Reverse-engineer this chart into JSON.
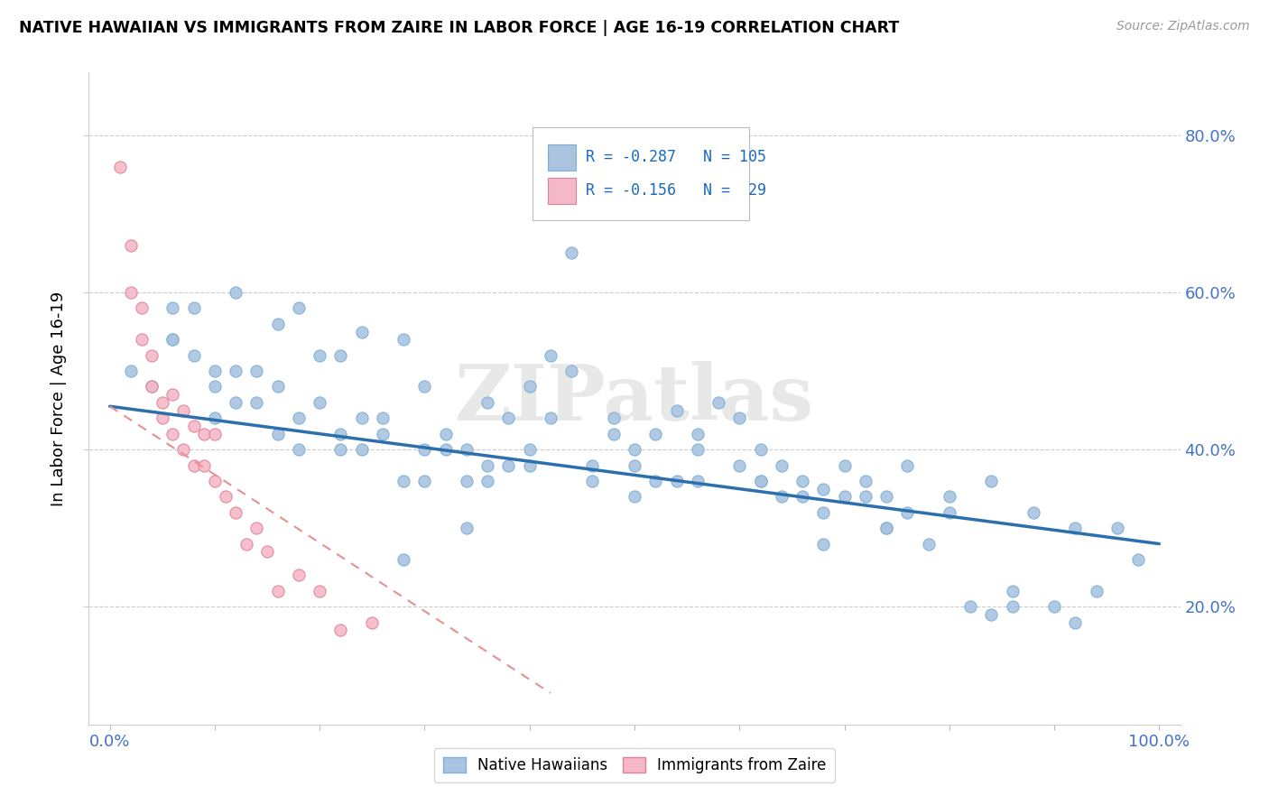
{
  "title": "NATIVE HAWAIIAN VS IMMIGRANTS FROM ZAIRE IN LABOR FORCE | AGE 16-19 CORRELATION CHART",
  "source": "Source: ZipAtlas.com",
  "ylabel": "In Labor Force | Age 16-19",
  "xlim": [
    -0.02,
    1.02
  ],
  "ylim": [
    0.05,
    0.88
  ],
  "ytick_right_positions": [
    0.2,
    0.4,
    0.6,
    0.8
  ],
  "ytick_right_labels": [
    "20.0%",
    "40.0%",
    "60.0%",
    "80.0%"
  ],
  "xtick_positions": [
    0.0,
    0.1,
    0.2,
    0.3,
    0.4,
    0.5,
    0.6,
    0.7,
    0.8,
    0.9,
    1.0
  ],
  "xtick_labels": [
    "0.0%",
    "",
    "",
    "",
    "",
    "",
    "",
    "",
    "",
    "",
    "100.0%"
  ],
  "r_blue": -0.287,
  "n_blue": 105,
  "r_pink": -0.156,
  "n_pink": 29,
  "blue_dot_color": "#aac4e0",
  "blue_dot_edge": "#7bafd4",
  "pink_dot_color": "#f5b8c8",
  "pink_dot_edge": "#e08098",
  "blue_line_color": "#2c6fad",
  "pink_line_color": "#e89090",
  "watermark": "ZIPatlas",
  "legend_r_color": "#1a6bbf",
  "blue_trend_x0": 0.0,
  "blue_trend_y0": 0.455,
  "blue_trend_x1": 1.0,
  "blue_trend_y1": 0.28,
  "pink_trend_x0": 0.0,
  "pink_trend_y0": 0.455,
  "pink_trend_x1": 0.42,
  "pink_trend_y1": 0.09,
  "blue_x": [
    0.42,
    0.44,
    0.08,
    0.24,
    0.14,
    0.12,
    0.3,
    0.18,
    0.2,
    0.28,
    0.16,
    0.1,
    0.22,
    0.26,
    0.36,
    0.32,
    0.38,
    0.34,
    0.4,
    0.06,
    0.46,
    0.5,
    0.48,
    0.52,
    0.54,
    0.56,
    0.6,
    0.58,
    0.62,
    0.64,
    0.66,
    0.68,
    0.7,
    0.72,
    0.74,
    0.76,
    0.8,
    0.84,
    0.88,
    0.92,
    0.96,
    0.04,
    0.02,
    0.36,
    0.32,
    0.28,
    0.24,
    0.22,
    0.18,
    0.14,
    0.1,
    0.08,
    0.46,
    0.5,
    0.54,
    0.6,
    0.64,
    0.68,
    0.72,
    0.76,
    0.84,
    0.4,
    0.38,
    0.34,
    0.3,
    0.26,
    0.2,
    0.16,
    0.12,
    0.06,
    0.44,
    0.48,
    0.52,
    0.56,
    0.62,
    0.66,
    0.7,
    0.74,
    0.78,
    0.82,
    0.86,
    0.9,
    0.94,
    0.98,
    0.42,
    0.36,
    0.3,
    0.24,
    0.18,
    0.12,
    0.06,
    0.5,
    0.56,
    0.62,
    0.68,
    0.74,
    0.8,
    0.86,
    0.92,
    0.4,
    0.34,
    0.28,
    0.22,
    0.16,
    0.1
  ],
  "blue_y": [
    0.52,
    0.65,
    0.58,
    0.55,
    0.5,
    0.6,
    0.48,
    0.58,
    0.52,
    0.54,
    0.56,
    0.5,
    0.52,
    0.44,
    0.46,
    0.42,
    0.44,
    0.4,
    0.48,
    0.54,
    0.38,
    0.4,
    0.44,
    0.42,
    0.45,
    0.42,
    0.44,
    0.46,
    0.4,
    0.38,
    0.36,
    0.35,
    0.38,
    0.36,
    0.34,
    0.38,
    0.34,
    0.36,
    0.32,
    0.3,
    0.3,
    0.48,
    0.5,
    0.38,
    0.4,
    0.36,
    0.44,
    0.42,
    0.44,
    0.46,
    0.48,
    0.52,
    0.36,
    0.34,
    0.36,
    0.38,
    0.34,
    0.32,
    0.34,
    0.32,
    0.19,
    0.4,
    0.38,
    0.36,
    0.4,
    0.42,
    0.46,
    0.48,
    0.5,
    0.54,
    0.5,
    0.42,
    0.36,
    0.4,
    0.36,
    0.34,
    0.34,
    0.3,
    0.28,
    0.2,
    0.22,
    0.2,
    0.22,
    0.26,
    0.44,
    0.36,
    0.36,
    0.4,
    0.4,
    0.46,
    0.58,
    0.38,
    0.36,
    0.36,
    0.28,
    0.3,
    0.32,
    0.2,
    0.18,
    0.38,
    0.3,
    0.26,
    0.4,
    0.42,
    0.44
  ],
  "pink_x": [
    0.01,
    0.02,
    0.02,
    0.03,
    0.03,
    0.04,
    0.04,
    0.05,
    0.05,
    0.06,
    0.06,
    0.07,
    0.07,
    0.08,
    0.08,
    0.09,
    0.09,
    0.1,
    0.1,
    0.11,
    0.12,
    0.13,
    0.14,
    0.15,
    0.16,
    0.18,
    0.2,
    0.22,
    0.25
  ],
  "pink_y": [
    0.76,
    0.66,
    0.6,
    0.58,
    0.54,
    0.52,
    0.48,
    0.46,
    0.44,
    0.47,
    0.42,
    0.45,
    0.4,
    0.43,
    0.38,
    0.42,
    0.38,
    0.42,
    0.36,
    0.34,
    0.32,
    0.28,
    0.3,
    0.27,
    0.22,
    0.24,
    0.22,
    0.17,
    0.18
  ]
}
